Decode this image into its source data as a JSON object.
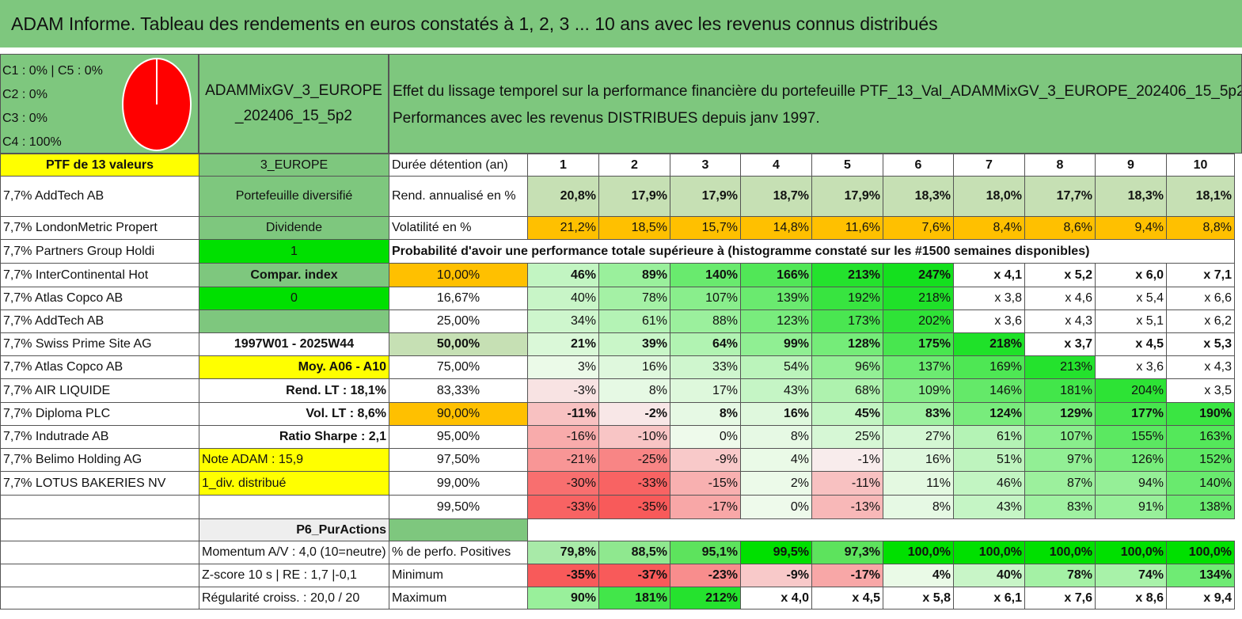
{
  "title": "ADAM Informe. Tableau des rendements en euros constatés à 1, 2, 3 ... 10 ans avec les revenus connus distribués",
  "allocation": {
    "c1c5": "C1 : 0% | C5 : 0%",
    "c2": "C2 : 0%",
    "c3": "C3 : 0%",
    "c4": "C4 : 100%"
  },
  "fund_name": "ADAMMixGV_3_EUROPE_202406_15_5p2",
  "description": {
    "line1": "Effet du lissage temporel sur la performance financière du portefeuille PTF_13_Val_ADAMMixGV_3_EUROPE_202406_15_5p2.",
    "line2": "Performances avec les revenus DISTRIBUES depuis janv 1997."
  },
  "header_row": {
    "col_a": "PTF de 13 valeurs",
    "col_b": "3_EUROPE",
    "col_c": "Durée détention (an)",
    "years": [
      "1",
      "2",
      "3",
      "4",
      "5",
      "6",
      "7",
      "8",
      "9",
      "10"
    ]
  },
  "holdings": [
    "7,7% AddTech AB",
    "7,7% LondonMetric Propert",
    "7,7% Partners Group Holdi",
    "7,7% InterContinental Hot",
    "7,7% Atlas Copco AB",
    "7,7% AddTech AB",
    "7,7% Swiss Prime Site AG",
    "7,7% Atlas Copco AB",
    "7,7% AIR LIQUIDE",
    "7,7% Diploma PLC",
    "7,7% Indutrade AB",
    "7,7% Belimo Holding AG",
    "7,7% LOTUS BAKERIES NV"
  ],
  "side_info": {
    "portfolio_type": "Portefeuille diversifié",
    "dividend_label": "Dividende",
    "dividend_value": "1",
    "compar_label": "Compar. index",
    "compar_value": "0",
    "period": "1997W01 - 2025W44",
    "moy": "Moy. A06 - A10",
    "rend_lt": "Rend. LT : 18,1%",
    "vol_lt": "Vol. LT : 8,6%",
    "sharpe": "Ratio Sharpe : 2,1",
    "note": "Note ADAM : 15,9",
    "div": "1_div. distribué",
    "p6": "P6_PurActions",
    "momentum": "Momentum A/V : 4,0 (10=neutre)",
    "zscore": "Z-score 10 s | RE : 1,7 |-0,1",
    "regularite": "Régularité croiss. : 20,0 / 20"
  },
  "rend_row": {
    "label": "Rend. annualisé en %",
    "values": [
      "20,8%",
      "17,9%",
      "17,9%",
      "18,7%",
      "17,9%",
      "18,3%",
      "18,0%",
      "17,7%",
      "18,3%",
      "18,1%"
    ]
  },
  "vol_row": {
    "label": "Volatilité en %",
    "values": [
      "21,2%",
      "18,5%",
      "15,7%",
      "14,8%",
      "11,6%",
      "7,6%",
      "8,4%",
      "8,6%",
      "9,4%",
      "8,8%"
    ]
  },
  "prob_title": "Probabilité d'avoir une performance totale supérieure à (histogramme constaté sur les #1500 semaines disponibles)",
  "prob_rows": [
    {
      "p": "10,00%",
      "values": [
        "46%",
        "89%",
        "140%",
        "166%",
        "213%",
        "247%",
        "x 4,1",
        "x 5,2",
        "x 6,0",
        "x 7,1"
      ]
    },
    {
      "p": "16,67%",
      "values": [
        "40%",
        "78%",
        "107%",
        "139%",
        "192%",
        "218%",
        "x 3,8",
        "x 4,6",
        "x 5,4",
        "x 6,6"
      ]
    },
    {
      "p": "25,00%",
      "values": [
        "34%",
        "61%",
        "88%",
        "123%",
        "173%",
        "202%",
        "x 3,6",
        "x 4,3",
        "x 5,1",
        "x 6,2"
      ]
    },
    {
      "p": "50,00%",
      "values": [
        "21%",
        "39%",
        "64%",
        "99%",
        "128%",
        "175%",
        "218%",
        "x 3,7",
        "x 4,5",
        "x 5,3"
      ]
    },
    {
      "p": "75,00%",
      "values": [
        "3%",
        "16%",
        "33%",
        "54%",
        "96%",
        "137%",
        "169%",
        "213%",
        "x 3,6",
        "x 4,3"
      ]
    },
    {
      "p": "83,33%",
      "values": [
        "-3%",
        "8%",
        "17%",
        "43%",
        "68%",
        "109%",
        "146%",
        "181%",
        "204%",
        "x 3,5"
      ]
    },
    {
      "p": "90,00%",
      "values": [
        "-11%",
        "-2%",
        "8%",
        "16%",
        "45%",
        "83%",
        "124%",
        "129%",
        "177%",
        "190%"
      ]
    },
    {
      "p": "95,00%",
      "values": [
        "-16%",
        "-10%",
        "0%",
        "8%",
        "25%",
        "27%",
        "61%",
        "107%",
        "155%",
        "163%"
      ]
    },
    {
      "p": "97,50%",
      "values": [
        "-21%",
        "-25%",
        "-9%",
        "4%",
        "-1%",
        "16%",
        "51%",
        "97%",
        "126%",
        "152%"
      ]
    },
    {
      "p": "99,00%",
      "values": [
        "-30%",
        "-33%",
        "-15%",
        "2%",
        "-11%",
        "11%",
        "46%",
        "87%",
        "94%",
        "140%"
      ]
    },
    {
      "p": "99,50%",
      "values": [
        "-33%",
        "-35%",
        "-17%",
        "0%",
        "-13%",
        "8%",
        "43%",
        "83%",
        "91%",
        "138%"
      ]
    }
  ],
  "summary_rows": [
    {
      "label": "% de perfo. Positives",
      "values": [
        "79,8%",
        "88,5%",
        "95,1%",
        "99,5%",
        "97,3%",
        "100,0%",
        "100,0%",
        "100,0%",
        "100,0%",
        "100,0%"
      ]
    },
    {
      "label": "Minimum",
      "values": [
        "-35%",
        "-37%",
        "-23%",
        "-9%",
        "-17%",
        "4%",
        "40%",
        "78%",
        "74%",
        "134%"
      ]
    },
    {
      "label": "Maximum",
      "values": [
        "90%",
        "181%",
        "212%",
        "x 4,0",
        "x 4,5",
        "x 5,8",
        "x 6,1",
        "x 7,6",
        "x 8,6",
        "x 9,4"
      ]
    }
  ],
  "colors": {
    "header_green": "#7ec77e",
    "yellow": "#ffff00",
    "orange": "#ffc000",
    "bright_green": "#00e000",
    "label_red": "#e0001b",
    "pie_red": "#ff0000"
  }
}
